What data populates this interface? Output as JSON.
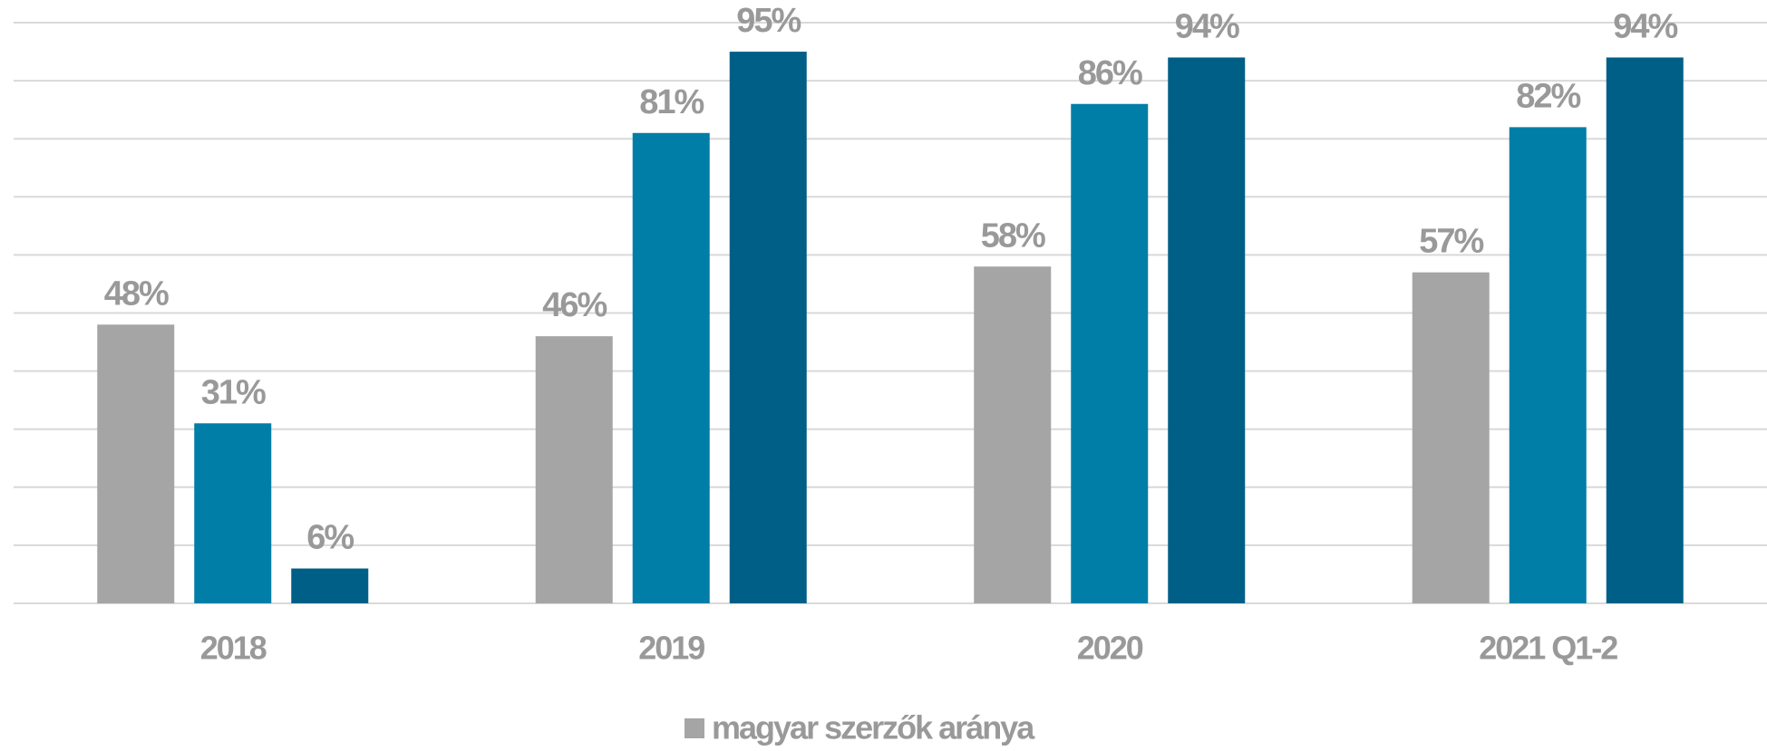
{
  "chart_data": {
    "type": "bar",
    "categories": [
      "2018",
      "2019",
      "2020",
      "2021 Q1-2"
    ],
    "series": [
      {
        "name": "magyar szerzők aránya",
        "color": "#a5a5a5",
        "values": [
          48,
          46,
          58,
          57
        ],
        "value_labels": [
          "48%",
          "46%",
          "58%",
          "57%"
        ]
      },
      {
        "color": "#007ea7",
        "values": [
          31,
          81,
          86,
          82
        ],
        "value_labels": [
          "31%",
          "81%",
          "86%",
          "82%"
        ]
      },
      {
        "color": "#005f87",
        "values": [
          6,
          95,
          94,
          94
        ],
        "value_labels": [
          "6%",
          "95%",
          "94%",
          "94%"
        ]
      }
    ],
    "ylim": [
      0,
      100
    ],
    "yticks": [
      0,
      10,
      20,
      30,
      40,
      50,
      60,
      70,
      80,
      90,
      100
    ],
    "grid": true,
    "legend": "bottom"
  }
}
